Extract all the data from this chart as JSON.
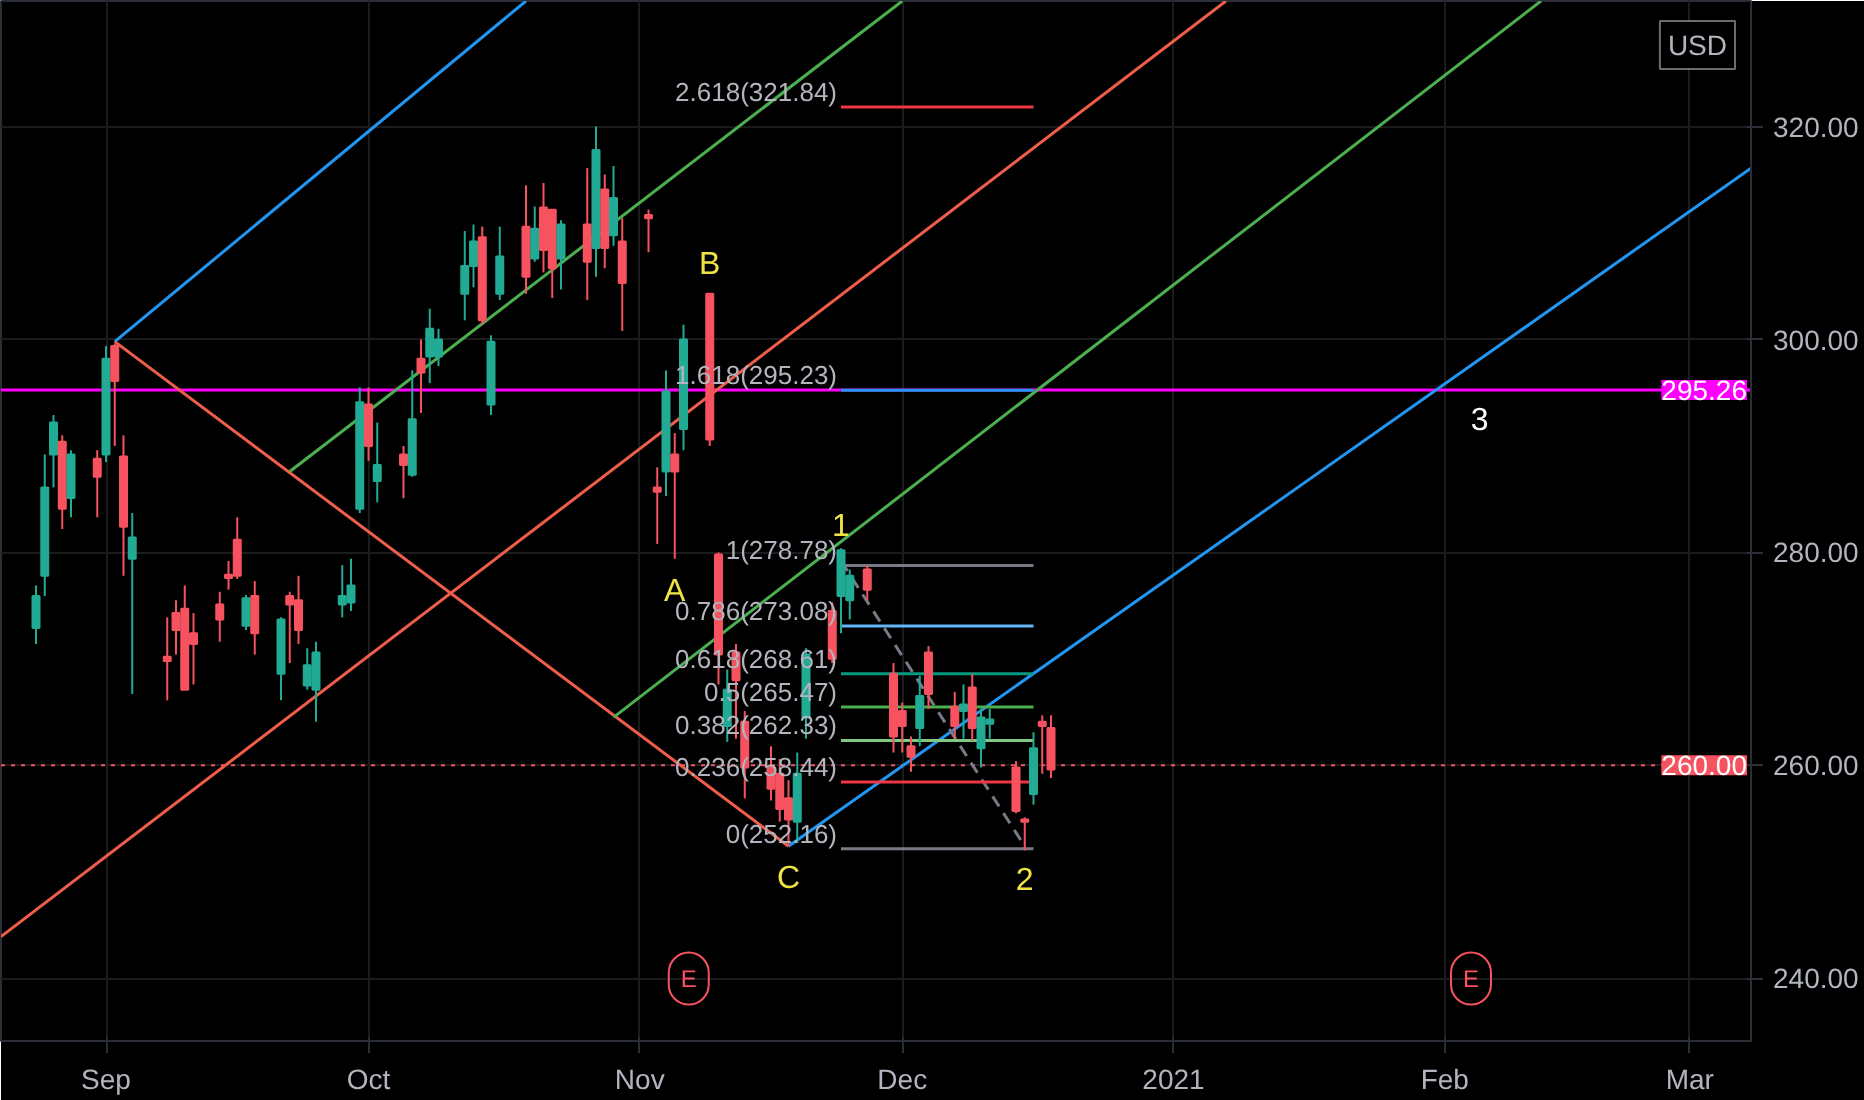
{
  "chart_data": {
    "type": "candlestick",
    "x": [
      "2020-08-24",
      "2020-08-25",
      "2020-08-26",
      "2020-08-27",
      "2020-08-28",
      "2020-08-31",
      "2020-09-01",
      "2020-09-02",
      "2020-09-03",
      "2020-09-04",
      "2020-09-08",
      "2020-09-09",
      "2020-09-10",
      "2020-09-11",
      "2020-09-14",
      "2020-09-15",
      "2020-09-16",
      "2020-09-17",
      "2020-09-18",
      "2020-09-21",
      "2020-09-22",
      "2020-09-23",
      "2020-09-24",
      "2020-09-25",
      "2020-09-28",
      "2020-09-29",
      "2020-09-30",
      "2020-10-01",
      "2020-10-02",
      "2020-10-05",
      "2020-10-06",
      "2020-10-07",
      "2020-10-08",
      "2020-10-09",
      "2020-10-12",
      "2020-10-13",
      "2020-10-14",
      "2020-10-15",
      "2020-10-16",
      "2020-10-19",
      "2020-10-20",
      "2020-10-21",
      "2020-10-22",
      "2020-10-23",
      "2020-10-26",
      "2020-10-27",
      "2020-10-28",
      "2020-10-29",
      "2020-10-30",
      "2020-11-02",
      "2020-11-03",
      "2020-11-04",
      "2020-11-05",
      "2020-11-06",
      "2020-11-09",
      "2020-11-10",
      "2020-11-11",
      "2020-11-12",
      "2020-11-13",
      "2020-11-16",
      "2020-11-17",
      "2020-11-18",
      "2020-11-19",
      "2020-11-20",
      "2020-11-23",
      "2020-11-24",
      "2020-11-25",
      "2020-11-27",
      "2020-11-30",
      "2020-12-01",
      "2020-12-02",
      "2020-12-03",
      "2020-12-04",
      "2020-12-07",
      "2020-12-08",
      "2020-12-09",
      "2020-12-10",
      "2020-12-11",
      "2020-12-14",
      "2020-12-15",
      "2020-12-16",
      "2020-12-17",
      "2020-12-18"
    ],
    "ohlc": [
      [
        272.9,
        276.9,
        271.4,
        275.9
      ],
      [
        277.8,
        289.2,
        275.9,
        286.1
      ],
      [
        289.2,
        292.9,
        286.1,
        292.2
      ],
      [
        290.4,
        291.0,
        282.2,
        284.1
      ],
      [
        285.1,
        289.6,
        283.3,
        289.2
      ],
      [
        288.8,
        289.6,
        283.3,
        287.1
      ],
      [
        289.2,
        299.4,
        288.5,
        298.2
      ],
      [
        299.4,
        299.6,
        290.0,
        296.1
      ],
      [
        289.0,
        291.0,
        277.8,
        282.4
      ],
      [
        279.4,
        283.7,
        266.7,
        281.4
      ],
      [
        270.2,
        273.9,
        266.1,
        269.8
      ],
      [
        274.3,
        275.5,
        270.4,
        272.7
      ],
      [
        274.7,
        276.9,
        267.1,
        267.1
      ],
      [
        272.4,
        274.3,
        267.6,
        271.4
      ],
      [
        275.1,
        276.3,
        271.6,
        273.7
      ],
      [
        277.9,
        279.2,
        276.5,
        277.6
      ],
      [
        281.2,
        283.3,
        277.5,
        277.8
      ],
      [
        273.1,
        276.0,
        272.7,
        275.7
      ],
      [
        275.9,
        277.3,
        270.4,
        272.4
      ],
      [
        268.6,
        273.9,
        266.1,
        273.7
      ],
      [
        275.9,
        276.3,
        269.6,
        275.1
      ],
      [
        275.5,
        277.8,
        271.4,
        272.7
      ],
      [
        267.5,
        271.0,
        267.1,
        269.4
      ],
      [
        267.1,
        271.6,
        264.1,
        270.6
      ],
      [
        275.1,
        278.8,
        273.9,
        275.9
      ],
      [
        275.3,
        279.4,
        274.5,
        276.9
      ],
      [
        284.1,
        295.5,
        283.7,
        294.1
      ],
      [
        293.9,
        295.5,
        288.6,
        290.0
      ],
      [
        286.7,
        292.2,
        284.7,
        288.2
      ],
      [
        289.2,
        290.0,
        285.1,
        288.2
      ],
      [
        287.3,
        297.1,
        287.1,
        292.5
      ],
      [
        298.2,
        300.0,
        293.1,
        296.9
      ],
      [
        298.4,
        302.9,
        295.9,
        301.0
      ],
      [
        298.4,
        301.0,
        297.5,
        300.0
      ],
      [
        304.3,
        310.2,
        301.8,
        306.9
      ],
      [
        306.9,
        310.8,
        304.9,
        309.2
      ],
      [
        309.6,
        310.6,
        301.4,
        301.8
      ],
      [
        293.9,
        300.4,
        292.9,
        299.8
      ],
      [
        304.3,
        310.6,
        303.7,
        307.8
      ],
      [
        310.6,
        314.5,
        304.3,
        305.9
      ],
      [
        307.6,
        312.5,
        307.3,
        310.4
      ],
      [
        312.4,
        314.7,
        306.3,
        308.4
      ],
      [
        312.2,
        312.2,
        303.9,
        306.7
      ],
      [
        307.6,
        311.2,
        304.7,
        310.8
      ],
      [
        310.8,
        316.1,
        303.7,
        307.3
      ],
      [
        308.6,
        320.0,
        305.9,
        317.8
      ],
      [
        314.1,
        315.5,
        306.7,
        308.6
      ],
      [
        309.8,
        316.3,
        308.8,
        313.3
      ],
      [
        309.2,
        311.4,
        300.8,
        305.3
      ],
      [
        311.7,
        312.2,
        308.2,
        311.4
      ],
      [
        286.1,
        288.0,
        280.8,
        285.7
      ],
      [
        287.6,
        297.1,
        285.3,
        295.1
      ],
      [
        289.2,
        291.2,
        279.4,
        287.6
      ],
      [
        291.6,
        301.4,
        289.6,
        300.0
      ],
      [
        304.3,
        304.3,
        290.0,
        290.6
      ],
      [
        279.8,
        280.0,
        267.6,
        270.4
      ],
      [
        263.7,
        269.0,
        262.2,
        267.1
      ],
      [
        270.6,
        271.4,
        262.5,
        268.0
      ],
      [
        264.1,
        265.1,
        256.9,
        259.8
      ],
      [
        259.8,
        261.8,
        256.7,
        257.8
      ],
      [
        259.2,
        260.6,
        254.7,
        255.9
      ],
      [
        256.9,
        258.6,
        252.4,
        254.9
      ],
      [
        254.7,
        261.2,
        252.7,
        259.2
      ],
      [
        264.5,
        271.0,
        262.5,
        270.4
      ],
      [
        274.5,
        275.3,
        269.6,
        270.0
      ],
      [
        275.9,
        280.4,
        272.4,
        280.2
      ],
      [
        275.5,
        278.4,
        273.7,
        277.8
      ],
      [
        278.4,
        278.8,
        275.5,
        276.5
      ],
      [
        268.6,
        269.6,
        261.2,
        262.7
      ],
      [
        265.1,
        265.9,
        261.2,
        263.7
      ],
      [
        261.8,
        262.7,
        259.4,
        260.8
      ],
      [
        263.5,
        268.4,
        261.8,
        266.5
      ],
      [
        270.6,
        271.2,
        265.3,
        266.7
      ],
      [
        265.5,
        266.9,
        262.5,
        263.7
      ],
      [
        265.1,
        267.6,
        262.5,
        265.7
      ],
      [
        267.3,
        268.6,
        262.3,
        263.5
      ],
      [
        261.6,
        265.3,
        259.8,
        264.5
      ],
      [
        263.9,
        265.3,
        262.5,
        264.3
      ],
      [
        259.8,
        260.4,
        255.5,
        255.7
      ],
      [
        254.9,
        255.1,
        252.0,
        254.7
      ],
      [
        257.3,
        263.1,
        256.3,
        261.6
      ],
      [
        264.1,
        264.7,
        259.2,
        263.7
      ],
      [
        263.5,
        264.7,
        258.8,
        259.6
      ]
    ],
    "colors": [
      "#22ab94",
      "#22ab94",
      "#22ab94",
      "#f7525f",
      "#22ab94",
      "#f7525f",
      "#22ab94",
      "#f7525f",
      "#f7525f",
      "#22ab94",
      "#f7525f",
      "#f7525f",
      "#f7525f",
      "#f7525f",
      "#f7525f",
      "#f7525f",
      "#f7525f",
      "#22ab94",
      "#f7525f",
      "#22ab94",
      "#f7525f",
      "#f7525f",
      "#22ab94",
      "#22ab94",
      "#22ab94",
      "#22ab94",
      "#22ab94",
      "#f7525f",
      "#22ab94",
      "#f7525f",
      "#22ab94",
      "#f7525f",
      "#22ab94",
      "#22ab94",
      "#22ab94",
      "#22ab94",
      "#f7525f",
      "#22ab94",
      "#22ab94",
      "#f7525f",
      "#22ab94",
      "#f7525f",
      "#f7525f",
      "#22ab94",
      "#f7525f",
      "#22ab94",
      "#f7525f",
      "#22ab94",
      "#f7525f",
      "#f7525f",
      "#f7525f",
      "#22ab94",
      "#f7525f",
      "#22ab94",
      "#f7525f",
      "#f7525f",
      "#22ab94",
      "#f7525f",
      "#f7525f",
      "#f7525f",
      "#f7525f",
      "#f7525f",
      "#22ab94",
      "#22ab94",
      "#f7525f",
      "#22ab94",
      "#22ab94",
      "#f7525f",
      "#f7525f",
      "#f7525f",
      "#f7525f",
      "#22ab94",
      "#f7525f",
      "#f7525f",
      "#22ab94",
      "#f7525f",
      "#22ab94",
      "#22ab94",
      "#f7525f",
      "#f7525f",
      "#22ab94",
      "#f7525f",
      "#f7525f"
    ],
    "series": [
      {
        "type": "line",
        "x": [
          "2020-09-02",
          "2020-10-19"
        ],
        "values": [
          299.8,
          331.8
        ],
        "color": "#2196f3"
      },
      {
        "type": "line",
        "x": [
          "2020-09-02",
          "2020-11-18"
        ],
        "values": [
          299.8,
          252.4
        ],
        "color": "#f05d4a"
      },
      {
        "type": "line",
        "x": [
          "2020-09-22",
          "2020-12-01"
        ],
        "values": [
          287.6,
          331.8
        ],
        "color": "#4caf50"
      },
      {
        "type": "line",
        "x": [
          "2020-08-20",
          "2021-01-07"
        ],
        "values": [
          243.9,
          331.8
        ],
        "color": "#f05d4a"
      },
      {
        "type": "line",
        "x": [
          "2020-10-29",
          "2021-02-12"
        ],
        "values": [
          264.5,
          331.8
        ],
        "color": "#4caf50"
      },
      {
        "type": "line",
        "x": [
          "2020-11-18",
          "2021-03-08"
        ],
        "values": [
          252.4,
          316.1
        ],
        "color": "#2196f3"
      },
      {
        "type": "line",
        "x": [
          "2020-11-24",
          "2020-12-15"
        ],
        "values": [
          279.2,
          252.4
        ],
        "color": "#787b86",
        "line_style": "dashed"
      },
      {
        "type": "line",
        "x": [
          "2020-11-24",
          "2020-12-16"
        ],
        "values": [
          321.84,
          321.84
        ],
        "color": "#f23645"
      },
      {
        "type": "line",
        "x": [
          "2020-11-24",
          "2020-12-16"
        ],
        "values": [
          295.23,
          295.23
        ],
        "color": "#2196f3"
      },
      {
        "type": "line",
        "x": [
          "2020-11-24",
          "2020-12-16"
        ],
        "values": [
          278.78,
          278.78
        ],
        "color": "#787b86"
      },
      {
        "type": "line",
        "x": [
          "2020-11-24",
          "2020-12-16"
        ],
        "values": [
          273.08,
          273.08
        ],
        "color": "#64b5f6"
      },
      {
        "type": "line",
        "x": [
          "2020-11-24",
          "2020-12-16"
        ],
        "values": [
          268.61,
          268.61
        ],
        "color": "#089981"
      },
      {
        "type": "line",
        "x": [
          "2020-11-24",
          "2020-12-16"
        ],
        "values": [
          265.47,
          265.47
        ],
        "color": "#4caf50"
      },
      {
        "type": "line",
        "x": [
          "2020-11-24",
          "2020-12-16"
        ],
        "values": [
          262.33,
          262.33
        ],
        "color": "#81c784"
      },
      {
        "type": "line",
        "x": [
          "2020-11-24",
          "2020-12-16"
        ],
        "values": [
          258.44,
          258.44
        ],
        "color": "#f23645"
      },
      {
        "type": "line",
        "x": [
          "2020-11-24",
          "2020-12-16"
        ],
        "values": [
          252.16,
          252.16
        ],
        "color": "#787b86"
      }
    ],
    "annotations": [
      "USD",
      "E",
      "E",
      {
        "text": "2.618(321.84)",
        "x": "2020-11-24",
        "y": 321.84
      },
      {
        "text": "1.618(295.23)",
        "x": "2020-11-24",
        "y": 295.23
      },
      {
        "text": "1(278.78)",
        "x": "2020-11-24",
        "y": 278.78
      },
      {
        "text": "0.786(273.08)",
        "x": "2020-11-24",
        "y": 273.08
      },
      {
        "text": "0.618(268.61)",
        "x": "2020-11-24",
        "y": 268.61
      },
      {
        "text": "0.5(265.47)",
        "x": "2020-11-24",
        "y": 265.47
      },
      {
        "text": "0.382(262.33)",
        "x": "2020-11-24",
        "y": 262.33
      },
      {
        "text": "0.236(258.44)",
        "x": "2020-11-24",
        "y": 258.44
      },
      {
        "text": "0(252.16)",
        "x": "2020-11-24",
        "y": 252.16
      },
      {
        "text": "A",
        "x": "2020-11-05",
        "y": 279.4
      },
      {
        "text": "B",
        "x": "2020-11-09",
        "y": 304.3
      },
      {
        "text": "C",
        "x": "2020-11-18",
        "y": 252.4
      },
      {
        "text": "1",
        "x": "2020-11-24",
        "y": 280.4
      },
      {
        "text": "2",
        "x": "2020-12-15",
        "y": 252.0
      },
      {
        "text": "3",
        "x": "2021-02-05",
        "y": 295.26
      }
    ],
    "ref_lines": [
      {
        "axis": "y",
        "value": 295.26,
        "label": "295.26",
        "color": "#ff00ff"
      },
      {
        "axis": "y",
        "value": 260,
        "label": "260.00",
        "color": "#f7525f",
        "line_style": "dotted"
      }
    ],
    "xlim": [
      "2020-08-20",
      "2021-03-08"
    ],
    "ylim": [
      234.1,
      331.8
    ],
    "xticks": [
      {
        "value": "2020-09-01",
        "label": "Sep"
      },
      {
        "value": "2020-10-01",
        "label": "Oct"
      },
      {
        "value": "2020-11-01",
        "label": "Nov"
      },
      {
        "value": "2020-12-01",
        "label": "Dec"
      },
      {
        "value": "2021-01-01",
        "label": "2021"
      },
      {
        "value": "2021-02-01",
        "label": "Feb"
      },
      {
        "value": "2021-03-01",
        "label": "Mar"
      }
    ],
    "yticks": [
      {
        "value": 240,
        "label": "240.00"
      },
      {
        "value": 260,
        "label": "260.00"
      },
      {
        "value": 280,
        "label": "280.00"
      },
      {
        "value": 300,
        "label": "300.00"
      },
      {
        "value": 320,
        "label": "320.00"
      }
    ],
    "grid": true,
    "marker": "none"
  }
}
